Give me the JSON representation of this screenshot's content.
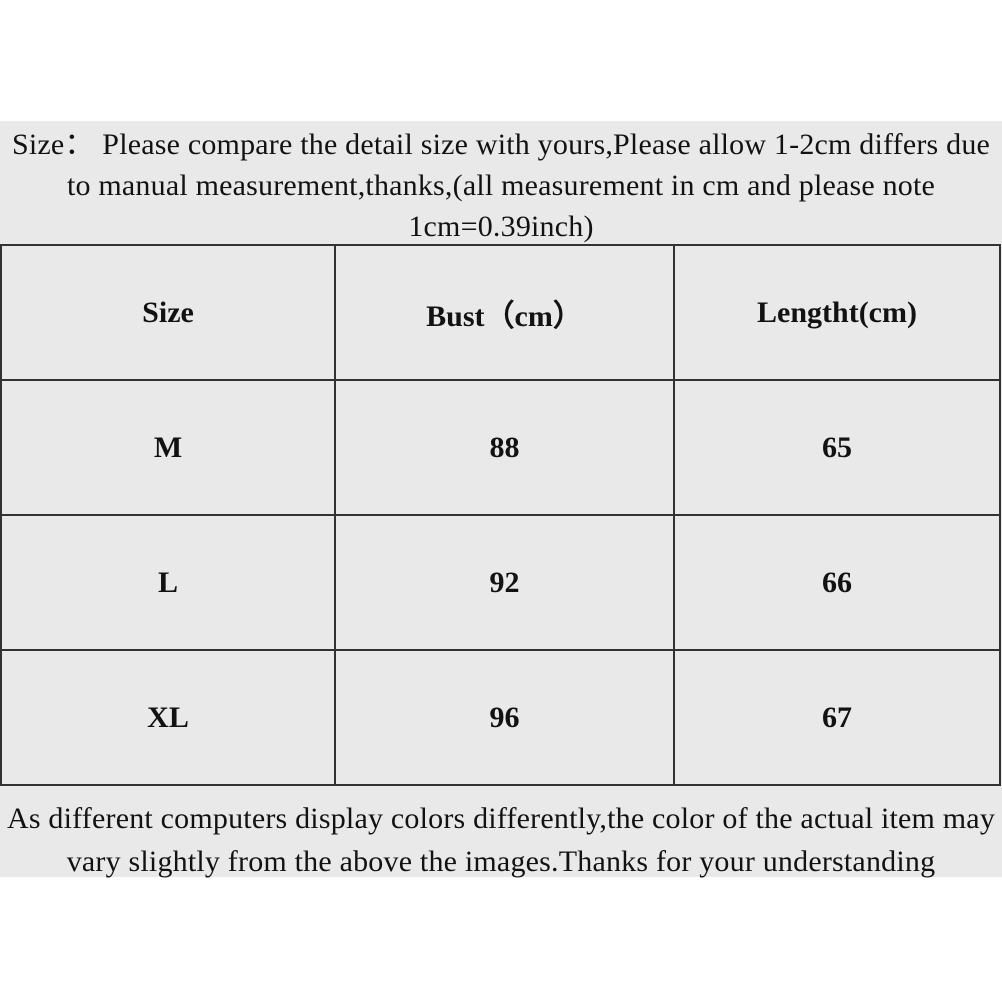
{
  "colors": {
    "page_background": "#ffffff",
    "band_background": "#e9e9e9",
    "text": "#121212",
    "table_border": "#323232"
  },
  "top_note": {
    "line1": "Size：  Please compare the detail size with yours,Please allow 1-2cm differs due",
    "line2": "to manual measurement,thanks,(all measurement in cm and please note",
    "line3": "1cm=0.39inch)"
  },
  "size_table": {
    "headers": [
      "Size",
      "Bust（cm）",
      "Lengtht(cm)"
    ],
    "rows": [
      {
        "size": "M",
        "bust": "88",
        "length": "65"
      },
      {
        "size": "L",
        "bust": "92",
        "length": "66"
      },
      {
        "size": "XL",
        "bust": "96",
        "length": "67"
      }
    ]
  },
  "bottom_note": {
    "line1": "As different computers display colors differently,the color of the actual item may",
    "line2": "vary slightly from the above the images.Thanks for your understanding"
  }
}
